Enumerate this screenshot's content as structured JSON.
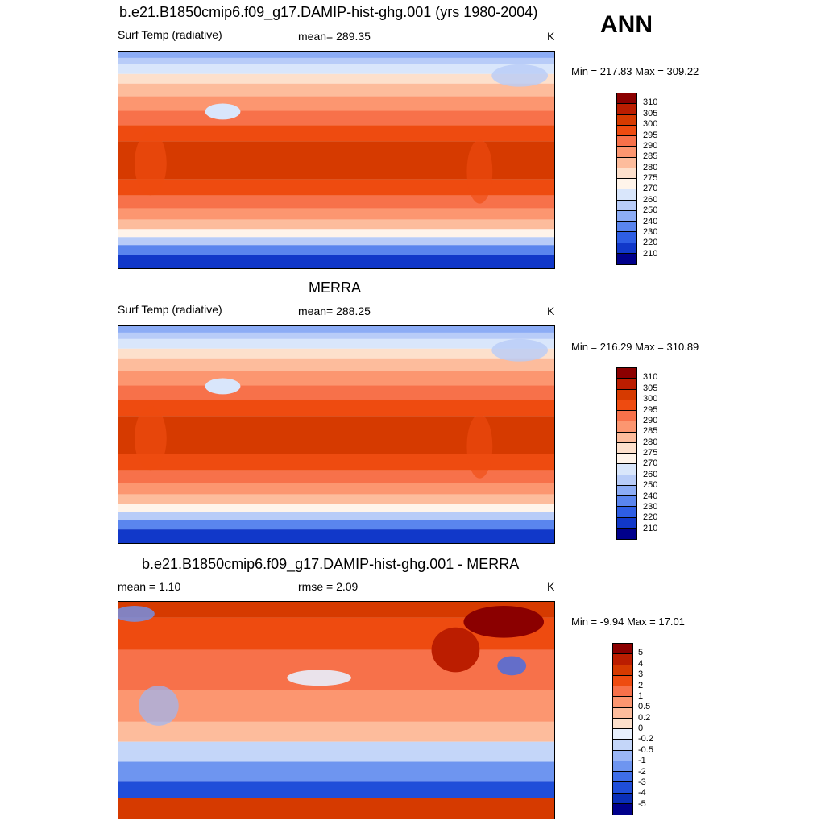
{
  "season": "ANN",
  "panels": [
    {
      "title": "b.e21.B1850cmip6.f09_g17.DAMIP-hist-ghg.001 (yrs 1980-2004)",
      "left_text": "Surf Temp (radiative)",
      "center_text": "mean= 289.35",
      "units": "K",
      "minmax": "Min = 217.83 Max = 309.22",
      "map_type": "abs"
    },
    {
      "title": "MERRA",
      "left_text": "Surf Temp (radiative)",
      "center_text": "mean= 288.25",
      "units": "K",
      "minmax": "Min = 216.29 Max = 310.89",
      "map_type": "abs"
    },
    {
      "title": "b.e21.B1850cmip6.f09_g17.DAMIP-hist-ghg.001 - MERRA",
      "left_text": "mean =   1.10",
      "center_text": "rmse =   2.09",
      "units": "K",
      "minmax": "Min =  -9.94 Max =  17.01",
      "map_type": "diff"
    }
  ],
  "colorbars": {
    "abs": {
      "labels": [
        "310",
        "305",
        "300",
        "295",
        "290",
        "285",
        "280",
        "275",
        "270",
        "260",
        "250",
        "240",
        "230",
        "220",
        "210"
      ],
      "colors": [
        "#8b0000",
        "#bb1d00",
        "#d63a00",
        "#ee4b10",
        "#f7714a",
        "#fc9670",
        "#fdbc9c",
        "#fde0cc",
        "#fff4ea",
        "#d9e6fb",
        "#b8ccf8",
        "#8cacf5",
        "#5a85ee",
        "#2e5ee4",
        "#1138c9",
        "#00008b"
      ]
    },
    "diff": {
      "labels": [
        "5",
        "4",
        "3",
        "2",
        "1",
        "0.5",
        "0.2",
        "0",
        "-0.2",
        "-0.5",
        "-1",
        "-2",
        "-3",
        "-4",
        "-5"
      ],
      "colors": [
        "#8b0000",
        "#bb1d00",
        "#d63a00",
        "#ee4b10",
        "#f7714a",
        "#fc9670",
        "#fdbc9c",
        "#fde0cc",
        "#e8f0fd",
        "#c4d6f9",
        "#9ab6f6",
        "#6e95f0",
        "#3f6ee8",
        "#1f4ed9",
        "#0a2fb8",
        "#00008b"
      ]
    }
  }
}
